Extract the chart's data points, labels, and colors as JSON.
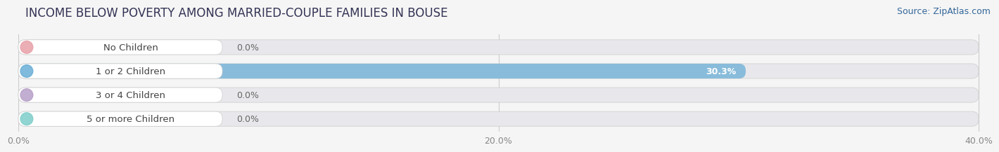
{
  "title": "INCOME BELOW POVERTY AMONG MARRIED-COUPLE FAMILIES IN BOUSE",
  "source": "Source: ZipAtlas.com",
  "categories": [
    "No Children",
    "1 or 2 Children",
    "3 or 4 Children",
    "5 or more Children"
  ],
  "values": [
    0.0,
    30.3,
    0.0,
    0.0
  ],
  "bar_colors": [
    "#e8a0a8",
    "#6aaed6",
    "#b8a0c8",
    "#7ececa"
  ],
  "xlim_max": 40.0,
  "xticks": [
    0.0,
    20.0,
    40.0
  ],
  "xtick_labels": [
    "0.0%",
    "20.0%",
    "40.0%"
  ],
  "bg_color": "#f5f5f5",
  "bar_bg_color": "#e8e8ec",
  "bar_bg_color2": "#f0f0f4",
  "title_fontsize": 12,
  "source_fontsize": 9,
  "label_fontsize": 9.5,
  "value_fontsize": 9
}
